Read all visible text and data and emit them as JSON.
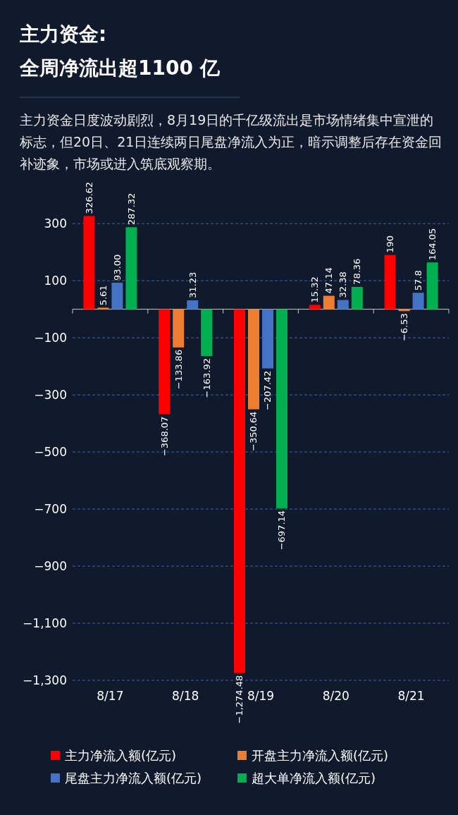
{
  "chart_data": {
    "type": "bar",
    "title": "主力资金:",
    "subtitle": "全周净流出超1100 亿",
    "annotations": [
      "主力资金日度波动剧烈，8月19日的千亿级流出是市场情绪集中宣泄的标志，但20日、21日连续两日尾盘净流入为正，暗示调整后存在资金回补迹象，市场或进入筑底观察期。"
    ],
    "categories": [
      "8/17",
      "8/18",
      "8/19",
      "8/20",
      "8/21"
    ],
    "series": [
      {
        "name": "主力净流入额(亿元)",
        "color": "#ff0000",
        "values": [
          326.62,
          -368.07,
          -1274.48,
          15.32,
          190
        ],
        "value_labels": [
          "326.62",
          "−368.07",
          "−1,274.48",
          "15.32",
          "190"
        ]
      },
      {
        "name": "开盘主力净流入额(亿元)",
        "color": "#ed7d31",
        "values": [
          5.61,
          -133.86,
          -350.64,
          47.14,
          -6.53
        ],
        "value_labels": [
          "5.61",
          "−133.86",
          "−350.64",
          "47.14",
          "−6.53"
        ]
      },
      {
        "name": "尾盘主力净流入额(亿元)",
        "color": "#4472c4",
        "values": [
          93.0,
          31.23,
          -207.42,
          32.38,
          57.8
        ],
        "value_labels": [
          "93.00",
          "31.23",
          "−207.42",
          "32.38",
          "57.8"
        ]
      },
      {
        "name": "超大单净流入额(亿元)",
        "color": "#00b050",
        "values": [
          287.32,
          -163.92,
          -697.14,
          78.36,
          164.05
        ],
        "value_labels": [
          "287.32",
          "−163.92",
          "−697.14",
          "78.36",
          "164.05"
        ]
      }
    ],
    "ylim": [
      -1300,
      330
    ],
    "yticks": [
      300,
      100,
      {
        "value": -100,
        "label": "−100"
      },
      {
        "value": -300,
        "label": "−300"
      },
      {
        "value": -500,
        "label": "−500"
      },
      {
        "value": -700,
        "label": "−700"
      },
      {
        "value": -900,
        "label": "−900"
      },
      {
        "value": -1100,
        "label": "−1,100"
      },
      {
        "value": -1300,
        "label": "−1,300"
      }
    ],
    "grid": "y",
    "legend": "bottom"
  }
}
